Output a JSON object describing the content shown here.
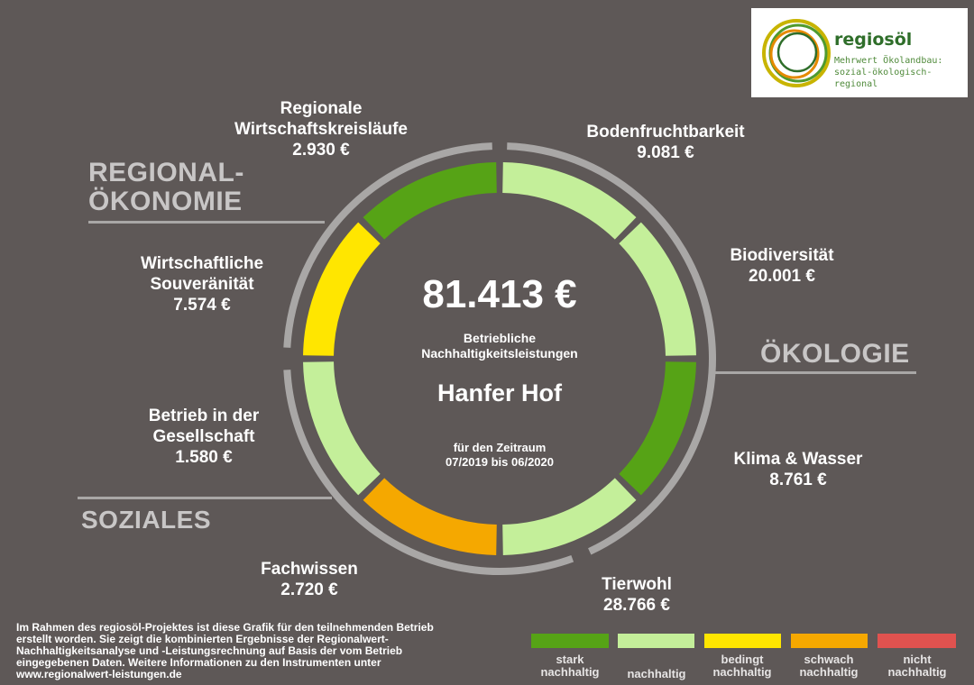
{
  "logo": {
    "name": "regiosöl",
    "tagline_1": "Mehrwert Ökolandbau:",
    "tagline_2": "sozial-ökologisch-regional"
  },
  "center": {
    "total": "81.413 €",
    "subtitle_1": "Betriebliche",
    "subtitle_2": "Nachhaltigkeitsleistungen",
    "farm": "Hanfer Hof",
    "period_1": "für den Zeitraum",
    "period_2": "07/2019 bis 06/2020"
  },
  "sections": {
    "regional_1": "REGIONAL-",
    "regional_2": "ÖKONOMIE",
    "oekologie": "ÖKOLOGIE",
    "soziales": "SOZIALES"
  },
  "categories": [
    {
      "name_1": "Regionale",
      "name_2": "Wirtschaftskreisläufe",
      "value": "2.930 €",
      "rating": "stark"
    },
    {
      "name_1": "Bodenfruchtbarkeit",
      "value": "9.081 €",
      "rating": "nachhaltig"
    },
    {
      "name_1": "Biodiversität",
      "value": "20.001 €",
      "rating": "nachhaltig"
    },
    {
      "name_1": "Klima & Wasser",
      "value": "8.761 €",
      "rating": "stark"
    },
    {
      "name_1": "Tierwohl",
      "value": "28.766 €",
      "rating": "nachhaltig"
    },
    {
      "name_1": "Fachwissen",
      "value": "2.720 €",
      "rating": "schwach"
    },
    {
      "name_1": "Betrieb in der",
      "name_2": "Gesellschaft",
      "value": "1.580 €",
      "rating": "nachhaltig"
    },
    {
      "name_1": "Wirtschaftliche",
      "name_2": "Souveränität",
      "value": "7.574 €",
      "rating": "bedingt"
    }
  ],
  "legend": [
    {
      "key": "stark",
      "line_1": "stark",
      "line_2": "nachhaltig",
      "color": "#56a316"
    },
    {
      "key": "nachhaltig",
      "line_1": "",
      "line_2": "nachhaltig",
      "color": "#c4ef9a"
    },
    {
      "key": "bedingt",
      "line_1": "bedingt",
      "line_2": "nachhaltig",
      "color": "#ffe600"
    },
    {
      "key": "schwach",
      "line_1": "schwach",
      "line_2": "nachhaltig",
      "color": "#f5a800"
    },
    {
      "key": "nicht",
      "line_1": "nicht",
      "line_2": "nachhaltig",
      "color": "#e0524f"
    }
  ],
  "footnote": "Im Rahmen des regiosöl-Projektes ist diese Grafik für den teilnehmenden Betrieb erstellt worden. Sie zeigt die kombinierten Ergebnisse der Regionalwert-Nachhaltigkeitsanalyse und -Leistungsrechnung auf Basis der vom Betrieb eingegebenen Daten. Weitere Informationen zu den Instrumenten unter www.regionalwert-leistungen.de"
}
